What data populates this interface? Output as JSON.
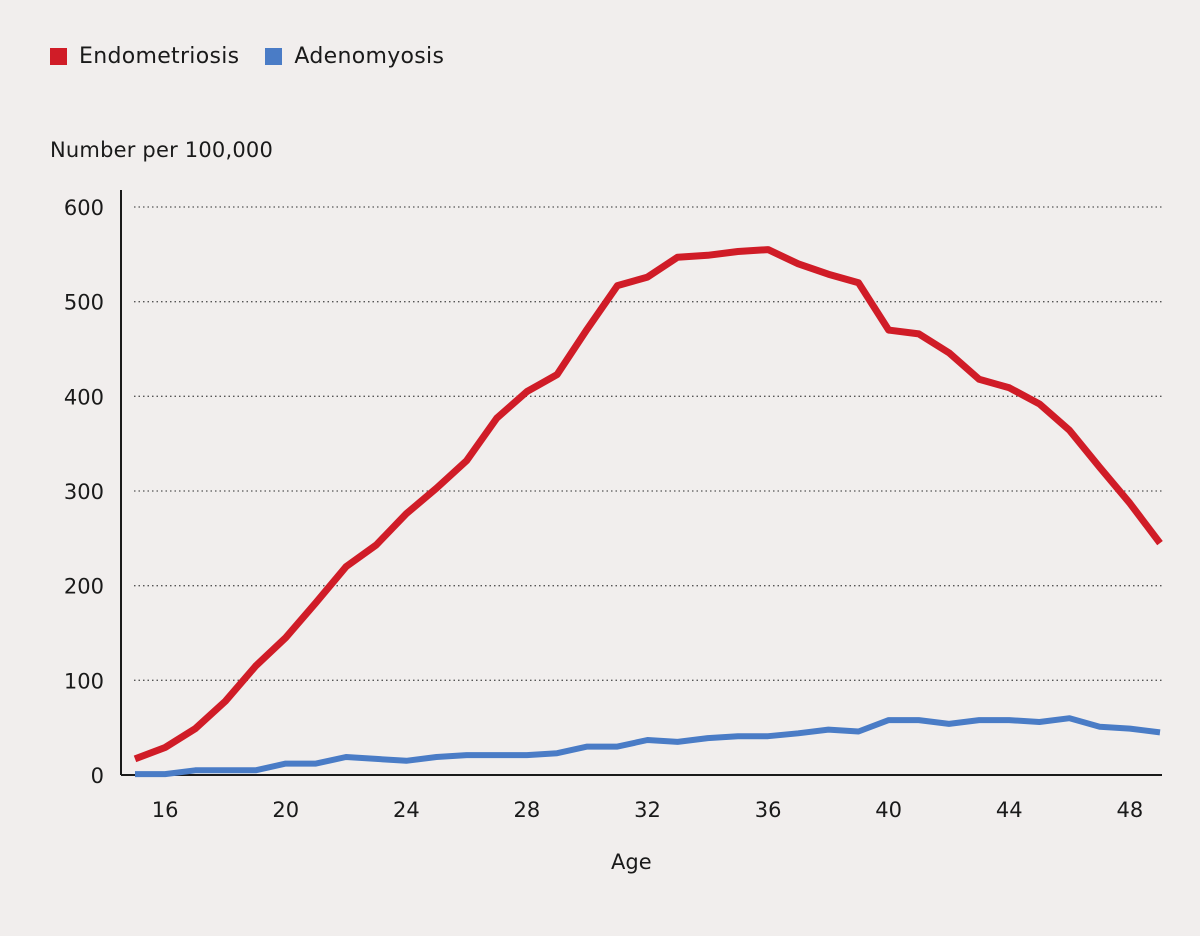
{
  "chart_data": {
    "type": "line",
    "xlabel": "Age",
    "ylabel": "Number per 100,000",
    "xlim": [
      15,
      49
    ],
    "ylim": [
      0,
      600
    ],
    "x_ticks": [
      "16",
      "20",
      "24",
      "28",
      "32",
      "36",
      "40",
      "44",
      "48"
    ],
    "y_ticks": [
      "0",
      "100",
      "200",
      "300",
      "400",
      "500",
      "600"
    ],
    "grid": "horizontal dotted",
    "legend_position": "top-left",
    "x": [
      15,
      16,
      17,
      18,
      19,
      20,
      21,
      22,
      23,
      24,
      25,
      26,
      27,
      28,
      29,
      30,
      31,
      32,
      33,
      34,
      35,
      36,
      37,
      38,
      39,
      40,
      41,
      42,
      43,
      44,
      45,
      46,
      47,
      48,
      49
    ],
    "series": [
      {
        "name": "Endometriosis",
        "color": "#d01c27",
        "values": [
          17,
          29,
          49,
          78,
          115,
          145,
          182,
          220,
          243,
          276,
          303,
          332,
          377,
          405,
          423,
          471,
          517,
          526,
          547,
          549,
          553,
          555,
          540,
          529,
          520,
          470,
          466,
          446,
          418,
          409,
          392,
          364,
          325,
          287,
          245
        ]
      },
      {
        "name": "Adenomyosis",
        "color": "#4a7cc6",
        "values": [
          1,
          1,
          5,
          5,
          5,
          12,
          12,
          19,
          17,
          15,
          19,
          21,
          21,
          21,
          23,
          30,
          30,
          37,
          35,
          39,
          41,
          41,
          44,
          48,
          46,
          58,
          58,
          54,
          58,
          58,
          56,
          60,
          51,
          49,
          45
        ]
      }
    ]
  }
}
